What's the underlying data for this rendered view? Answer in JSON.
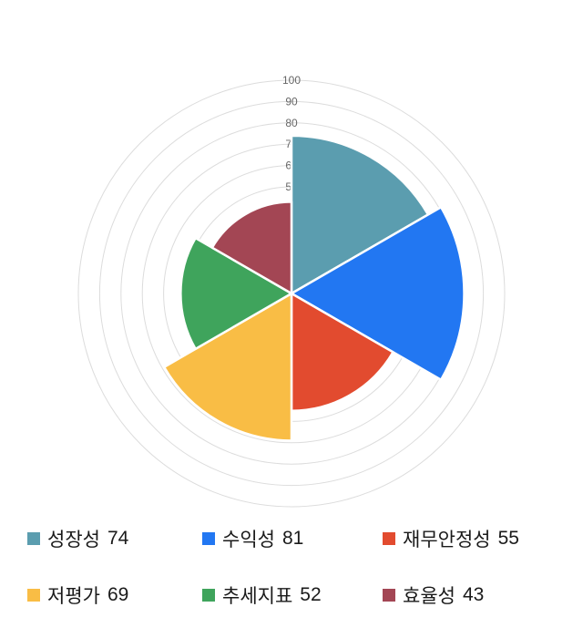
{
  "chart_data": {
    "type": "polar_area",
    "title": "",
    "max": 100,
    "grid_interval": 10,
    "axis_tick_labels": [
      "100",
      "90",
      "80",
      "70",
      "60",
      "50"
    ],
    "start_angle_deg": -90,
    "direction": "clockwise",
    "legend_position": "bottom",
    "grid_color": "#dcdcdc",
    "sector_border_color": "#ffffff",
    "items": [
      {
        "label": "성장성",
        "value": 74,
        "color": "#5B9DAF"
      },
      {
        "label": "수익성",
        "value": 81,
        "color": "#2277F2"
      },
      {
        "label": "재무안정성",
        "value": 55,
        "color": "#E24B2F"
      },
      {
        "label": "저평가",
        "value": 69,
        "color": "#F9BD45"
      },
      {
        "label": "추세지표",
        "value": 52,
        "color": "#3FA45C"
      },
      {
        "label": "효율성",
        "value": 43,
        "color": "#A34654"
      }
    ]
  }
}
